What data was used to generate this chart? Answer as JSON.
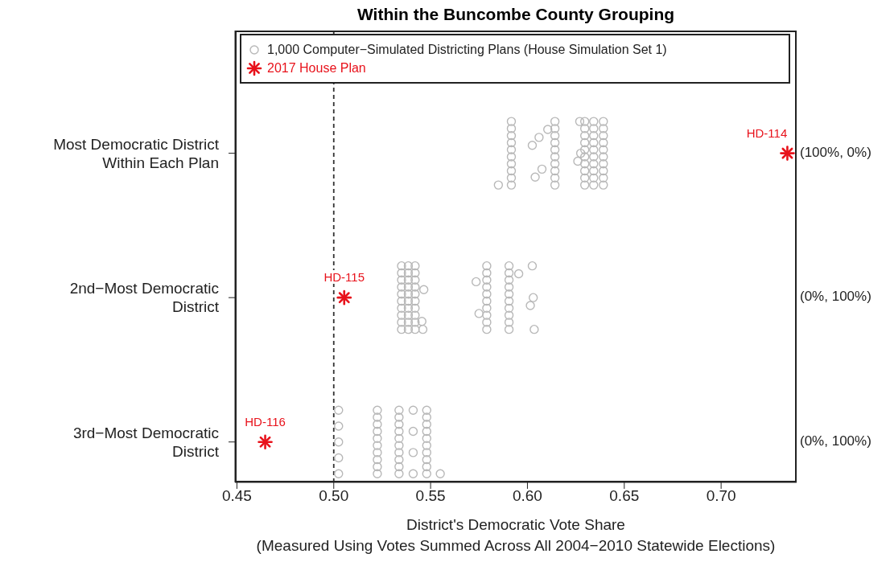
{
  "chart_data": {
    "type": "scatter",
    "orientation": "horizontal",
    "title": "Within the Buncombe County Grouping",
    "xlabel": "District's Democratic Vote Share\n(Measured Using Votes Summed Across All 2004−2010 Statewide Elections)",
    "categories": [
      "Most Democratic District\nWithin Each Plan",
      "2nd−Most Democratic\nDistrict",
      "3rd−Most Democratic\nDistrict"
    ],
    "xlim": [
      0.449,
      0.739
    ],
    "xticks": [
      0.45,
      {
        "value": 0.5,
        "label": "0.50"
      },
      0.55,
      {
        "value": 0.6,
        "label": "0.60"
      },
      0.65,
      {
        "value": 0.7,
        "label": "0.70"
      }
    ],
    "legend": "top",
    "ref_lines": [
      {
        "axis": "x",
        "value": 0.5,
        "color": "#333333",
        "line_style": "dashed"
      }
    ],
    "series": [
      {
        "name": "1,000 Computer−Simulated Districting Plans (House Simulation Set 1)",
        "color": "#b8b8b8",
        "marker": "circle",
        "x": [
          "Most Democratic District\nWithin Each Plan",
          "Most Democratic District\nWithin Each Plan",
          "Most Democratic District\nWithin Each Plan",
          "Most Democratic District\nWithin Each Plan",
          "Most Democratic District\nWithin Each Plan",
          "Most Democratic District\nWithin Each Plan",
          "Most Democratic District\nWithin Each Plan",
          "Most Democratic District\nWithin Each Plan",
          "Most Democratic District\nWithin Each Plan",
          "Most Democratic District\nWithin Each Plan",
          "Most Democratic District\nWithin Each Plan",
          "Most Democratic District\nWithin Each Plan",
          "Most Democratic District\nWithin Each Plan",
          "Most Democratic District\nWithin Each Plan",
          "Most Democratic District\nWithin Each Plan",
          "Most Democratic District\nWithin Each Plan",
          "Most Democratic District\nWithin Each Plan",
          "Most Democratic District\nWithin Each Plan",
          "Most Democratic District\nWithin Each Plan",
          "Most Democratic District\nWithin Each Plan",
          "Most Democratic District\nWithin Each Plan",
          "Most Democratic District\nWithin Each Plan",
          "Most Democratic District\nWithin Each Plan",
          "Most Democratic District\nWithin Each Plan",
          "Most Democratic District\nWithin Each Plan",
          "Most Democratic District\nWithin Each Plan",
          "Most Democratic District\nWithin Each Plan",
          "Most Democratic District\nWithin Each Plan",
          "Most Democratic District\nWithin Each Plan",
          "Most Democratic District\nWithin Each Plan",
          "Most Democratic District\nWithin Each Plan",
          "Most Democratic District\nWithin Each Plan",
          "Most Democratic District\nWithin Each Plan",
          "Most Democratic District\nWithin Each Plan",
          "Most Democratic District\nWithin Each Plan",
          "Most Democratic District\nWithin Each Plan",
          "Most Democratic District\nWithin Each Plan",
          "Most Democratic District\nWithin Each Plan",
          "Most Democratic District\nWithin Each Plan",
          "Most Democratic District\nWithin Each Plan",
          "Most Democratic District\nWithin Each Plan",
          "Most Democratic District\nWithin Each Plan",
          "Most Democratic District\nWithin Each Plan",
          "Most Democratic District\nWithin Each Plan",
          "Most Democratic District\nWithin Each Plan",
          "Most Democratic District\nWithin Each Plan",
          "Most Democratic District\nWithin Each Plan",
          "Most Democratic District\nWithin Each Plan",
          "Most Democratic District\nWithin Each Plan",
          "Most Democratic District\nWithin Each Plan",
          "Most Democratic District\nWithin Each Plan",
          "Most Democratic District\nWithin Each Plan",
          "Most Democratic District\nWithin Each Plan",
          "Most Democratic District\nWithin Each Plan",
          "Most Democratic District\nWithin Each Plan",
          "Most Democratic District\nWithin Each Plan",
          "Most Democratic District\nWithin Each Plan",
          "Most Democratic District\nWithin Each Plan",
          "Most Democratic District\nWithin Each Plan",
          "2nd−Most Democratic\nDistrict",
          "2nd−Most Democratic\nDistrict",
          "2nd−Most Democratic\nDistrict",
          "2nd−Most Democratic\nDistrict",
          "2nd−Most Democratic\nDistrict",
          "2nd−Most Democratic\nDistrict",
          "2nd−Most Democratic\nDistrict",
          "2nd−Most Democratic\nDistrict",
          "2nd−Most Democratic\nDistrict",
          "2nd−Most Democratic\nDistrict",
          "2nd−Most Democratic\nDistrict",
          "2nd−Most Democratic\nDistrict",
          "2nd−Most Democratic\nDistrict",
          "2nd−Most Democratic\nDistrict",
          "2nd−Most Democratic\nDistrict",
          "2nd−Most Democratic\nDistrict",
          "2nd−Most Democratic\nDistrict",
          "2nd−Most Democratic\nDistrict",
          "2nd−Most Democratic\nDistrict",
          "2nd−Most Democratic\nDistrict",
          "2nd−Most Democratic\nDistrict",
          "2nd−Most Democratic\nDistrict",
          "2nd−Most Democratic\nDistrict",
          "2nd−Most Democratic\nDistrict",
          "2nd−Most Democratic\nDistrict",
          "2nd−Most Democratic\nDistrict",
          "2nd−Most Democratic\nDistrict",
          "2nd−Most Democratic\nDistrict",
          "2nd−Most Democratic\nDistrict",
          "2nd−Most Democratic\nDistrict",
          "2nd−Most Democratic\nDistrict",
          "2nd−Most Democratic\nDistrict",
          "2nd−Most Democratic\nDistrict",
          "2nd−Most Democratic\nDistrict",
          "2nd−Most Democratic\nDistrict",
          "2nd−Most Democratic\nDistrict",
          "2nd−Most Democratic\nDistrict",
          "2nd−Most Democratic\nDistrict",
          "2nd−Most Democratic\nDistrict",
          "2nd−Most Democratic\nDistrict",
          "2nd−Most Democratic\nDistrict",
          "2nd−Most Democratic\nDistrict",
          "2nd−Most Democratic\nDistrict",
          "2nd−Most Democratic\nDistrict",
          "2nd−Most Democratic\nDistrict",
          "2nd−Most Democratic\nDistrict",
          "2nd−Most Democratic\nDistrict",
          "2nd−Most Democratic\nDistrict",
          "2nd−Most Democratic\nDistrict",
          "2nd−Most Democratic\nDistrict",
          "2nd−Most Democratic\nDistrict",
          "2nd−Most Democratic\nDistrict",
          "2nd−Most Democratic\nDistrict",
          "2nd−Most Democratic\nDistrict",
          "2nd−Most Democratic\nDistrict",
          "2nd−Most Democratic\nDistrict",
          "2nd−Most Democratic\nDistrict",
          "2nd−Most Democratic\nDistrict",
          "2nd−Most Democratic\nDistrict",
          "2nd−Most Democratic\nDistrict",
          "3rd−Most Democratic\nDistrict",
          "3rd−Most Democratic\nDistrict",
          "3rd−Most Democratic\nDistrict",
          "3rd−Most Democratic\nDistrict",
          "3rd−Most Democratic\nDistrict",
          "3rd−Most Democratic\nDistrict",
          "3rd−Most Democratic\nDistrict",
          "3rd−Most Democratic\nDistrict",
          "3rd−Most Democratic\nDistrict",
          "3rd−Most Democratic\nDistrict",
          "3rd−Most Democratic\nDistrict",
          "3rd−Most Democratic\nDistrict",
          "3rd−Most Democratic\nDistrict",
          "3rd−Most Democratic\nDistrict",
          "3rd−Most Democratic\nDistrict",
          "3rd−Most Democratic\nDistrict",
          "3rd−Most Democratic\nDistrict",
          "3rd−Most Democratic\nDistrict",
          "3rd−Most Democratic\nDistrict",
          "3rd−Most Democratic\nDistrict",
          "3rd−Most Democratic\nDistrict",
          "3rd−Most Democratic\nDistrict",
          "3rd−Most Democratic\nDistrict",
          "3rd−Most Democratic\nDistrict",
          "3rd−Most Democratic\nDistrict",
          "3rd−Most Democratic\nDistrict",
          "3rd−Most Democratic\nDistrict",
          "3rd−Most Democratic\nDistrict",
          "3rd−Most Democratic\nDistrict",
          "3rd−Most Democratic\nDistrict",
          "3rd−Most Democratic\nDistrict",
          "3rd−Most Democratic\nDistrict",
          "3rd−Most Democratic\nDistrict",
          "3rd−Most Democratic\nDistrict",
          "3rd−Most Democratic\nDistrict",
          "3rd−Most Democratic\nDistrict",
          "3rd−Most Democratic\nDistrict",
          "3rd−Most Democratic\nDistrict",
          "3rd−Most Democratic\nDistrict",
          "3rd−Most Democratic\nDistrict"
        ],
        "values": [
          0.5917,
          0.5917,
          0.5917,
          0.5917,
          0.5917,
          0.5917,
          0.5917,
          0.5917,
          0.5917,
          0.5917,
          0.6142,
          0.6142,
          0.6142,
          0.6142,
          0.6142,
          0.6142,
          0.6142,
          0.6142,
          0.6142,
          0.6142,
          0.6296,
          0.6296,
          0.6296,
          0.6296,
          0.6296,
          0.6296,
          0.6296,
          0.6296,
          0.6296,
          0.6296,
          0.6342,
          0.6342,
          0.6342,
          0.6342,
          0.6342,
          0.6342,
          0.6342,
          0.6342,
          0.6342,
          0.6342,
          0.6392,
          0.6392,
          0.6392,
          0.6392,
          0.6392,
          0.6392,
          0.6392,
          0.6392,
          0.6392,
          0.6392,
          0.585,
          0.6025,
          0.604,
          0.606,
          0.6075,
          0.6105,
          0.626,
          0.627,
          0.6275,
          0.535,
          0.535,
          0.535,
          0.535,
          0.535,
          0.535,
          0.535,
          0.535,
          0.535,
          0.535,
          0.5385,
          0.5385,
          0.5385,
          0.5385,
          0.5385,
          0.5385,
          0.5385,
          0.5385,
          0.5385,
          0.5385,
          0.542,
          0.542,
          0.542,
          0.542,
          0.542,
          0.542,
          0.542,
          0.542,
          0.542,
          0.542,
          0.579,
          0.579,
          0.579,
          0.579,
          0.579,
          0.579,
          0.579,
          0.579,
          0.579,
          0.579,
          0.5905,
          0.5905,
          0.5905,
          0.5905,
          0.5905,
          0.5905,
          0.5905,
          0.5905,
          0.5905,
          0.5905,
          0.546,
          0.5465,
          0.5455,
          0.5735,
          0.575,
          0.5955,
          0.6015,
          0.6025,
          0.603,
          0.6035,
          0.5225,
          0.5225,
          0.5225,
          0.5225,
          0.5225,
          0.5225,
          0.5225,
          0.5225,
          0.5225,
          0.5225,
          0.5337,
          0.5337,
          0.5337,
          0.5337,
          0.5337,
          0.5337,
          0.5337,
          0.5337,
          0.5337,
          0.5337,
          0.548,
          0.548,
          0.548,
          0.548,
          0.548,
          0.548,
          0.548,
          0.548,
          0.548,
          0.548,
          0.5025,
          0.5025,
          0.5025,
          0.5025,
          0.5025,
          0.541,
          0.541,
          0.541,
          0.541,
          0.555
        ]
      },
      {
        "name": "2017 House Plan",
        "color": "#e8121b",
        "marker": "cross",
        "x": [
          "Most Democratic District\nWithin Each Plan",
          "2nd−Most Democratic\nDistrict",
          "3rd−Most Democratic\nDistrict"
        ],
        "values": [
          0.7342,
          0.5054,
          0.4646
        ]
      }
    ],
    "annotations": [
      {
        "text": "HD-114",
        "x": 0.7342,
        "y": "Most Democratic District\nWithin Each Plan"
      },
      {
        "text": "HD-115",
        "x": 0.5054,
        "y": "2nd−Most Democratic\nDistrict"
      },
      {
        "text": "HD-116",
        "x": 0.4646,
        "y": "3rd−Most Democratic\nDistrict"
      },
      "(100%, 0%)",
      "(0%, 100%)",
      "(0%, 100%)"
    ]
  }
}
